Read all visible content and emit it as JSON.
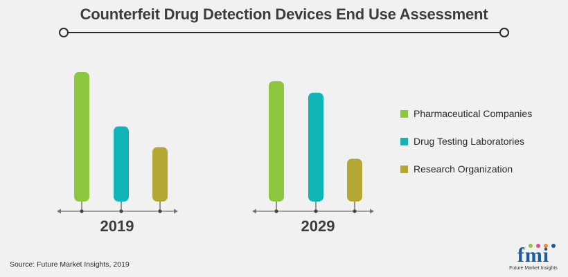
{
  "title": "Counterfeit Drug Detection Devices End Use Assessment",
  "source": "Source: Future Market Insights, 2019",
  "logo": {
    "mark": "fmi",
    "tagline": "Future Market Insights"
  },
  "colors": {
    "pharma": "#8dc63f",
    "labs": "#11b5b8",
    "research": "#b5a733",
    "axis": "#777777",
    "text": "#3c3c3c"
  },
  "chart_data": {
    "type": "bar",
    "title": "Counterfeit Drug Detection Devices End Use Assessment",
    "categories": [
      "2019",
      "2029"
    ],
    "series": [
      {
        "name": "Pharmaceutical Companies",
        "values": [
          100,
          93
        ]
      },
      {
        "name": "Drug Testing Laboratories",
        "values": [
          58,
          84
        ]
      },
      {
        "name": "Research Organization",
        "values": [
          42,
          33
        ]
      }
    ],
    "ylim": [
      0,
      100
    ],
    "legend_position": "right",
    "grid": false
  }
}
